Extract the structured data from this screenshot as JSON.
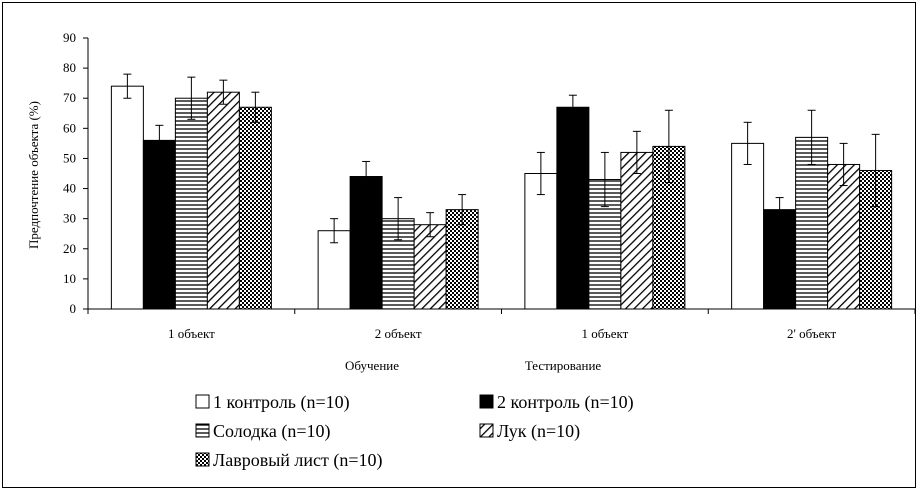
{
  "chart_data": {
    "type": "bar",
    "categories": [
      "1 объект",
      "2 объект",
      "1 объект",
      "2' объект"
    ],
    "group_labels": [
      "Обучение",
      "Тестирование"
    ],
    "ylabel": "Предпочтение объекта (%)",
    "xlabel": "",
    "ylim": [
      0,
      90
    ],
    "yticks": [
      "0",
      "10",
      "20",
      "30",
      "40",
      "50",
      "60",
      "70",
      "80",
      "90"
    ],
    "grid": false,
    "legend_position": "bottom",
    "series": [
      {
        "name": "1 контроль (n=10)",
        "pattern": "white",
        "values": [
          74,
          26,
          45,
          55
        ],
        "errors": [
          4,
          4,
          7,
          7
        ]
      },
      {
        "name": "2 контроль (n=10)",
        "pattern": "black",
        "values": [
          56,
          44,
          67,
          33
        ],
        "errors": [
          5,
          5,
          4,
          4
        ]
      },
      {
        "name": "Солодка (n=10)",
        "pattern": "horizontal-lines",
        "values": [
          70,
          30,
          43,
          57
        ],
        "errors": [
          7,
          7,
          9,
          9
        ]
      },
      {
        "name": "Лук (n=10)",
        "pattern": "diagonal-lines",
        "values": [
          72,
          28,
          52,
          48
        ],
        "errors": [
          4,
          4,
          7,
          7
        ]
      },
      {
        "name": "Лавровый лист (n=10)",
        "pattern": "checker",
        "values": [
          67,
          33,
          54,
          46
        ],
        "errors": [
          5,
          5,
          12,
          12
        ]
      }
    ],
    "colors": {
      "axis": "#000000",
      "bar_stroke": "#000000",
      "fill": "#ffffff",
      "dark": "#000000"
    }
  }
}
